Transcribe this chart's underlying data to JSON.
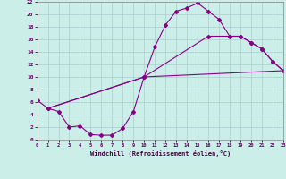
{
  "xlabel": "Windchill (Refroidissement éolien,°C)",
  "bg_color": "#cceee8",
  "grid_color": "#aacccc",
  "line_color": "#880088",
  "xlim": [
    0,
    23
  ],
  "ylim": [
    0,
    22
  ],
  "xticks": [
    0,
    1,
    2,
    3,
    4,
    5,
    6,
    7,
    8,
    9,
    10,
    11,
    12,
    13,
    14,
    15,
    16,
    17,
    18,
    19,
    20,
    21,
    22,
    23
  ],
  "yticks": [
    0,
    2,
    4,
    6,
    8,
    10,
    12,
    14,
    16,
    18,
    20,
    22
  ],
  "line1_x": [
    0,
    1,
    2,
    3,
    4,
    5,
    6,
    7,
    8,
    9,
    10,
    11,
    12,
    13,
    14,
    15,
    16,
    17,
    18,
    19,
    20,
    21,
    22,
    23
  ],
  "line1_y": [
    6.3,
    5.0,
    4.5,
    2.0,
    2.2,
    0.8,
    0.7,
    0.7,
    1.8,
    4.5,
    10.0,
    14.8,
    18.3,
    20.5,
    21.0,
    21.8,
    20.5,
    19.2,
    16.5,
    16.5,
    15.5,
    14.5,
    12.5,
    11.0
  ],
  "line2_x": [
    1,
    10,
    16,
    19,
    20,
    21,
    22,
    23
  ],
  "line2_y": [
    5.0,
    10.0,
    16.5,
    16.5,
    15.5,
    14.5,
    12.5,
    11.0
  ],
  "line3_x": [
    1,
    10,
    23
  ],
  "line3_y": [
    5.0,
    10.0,
    11.0
  ]
}
